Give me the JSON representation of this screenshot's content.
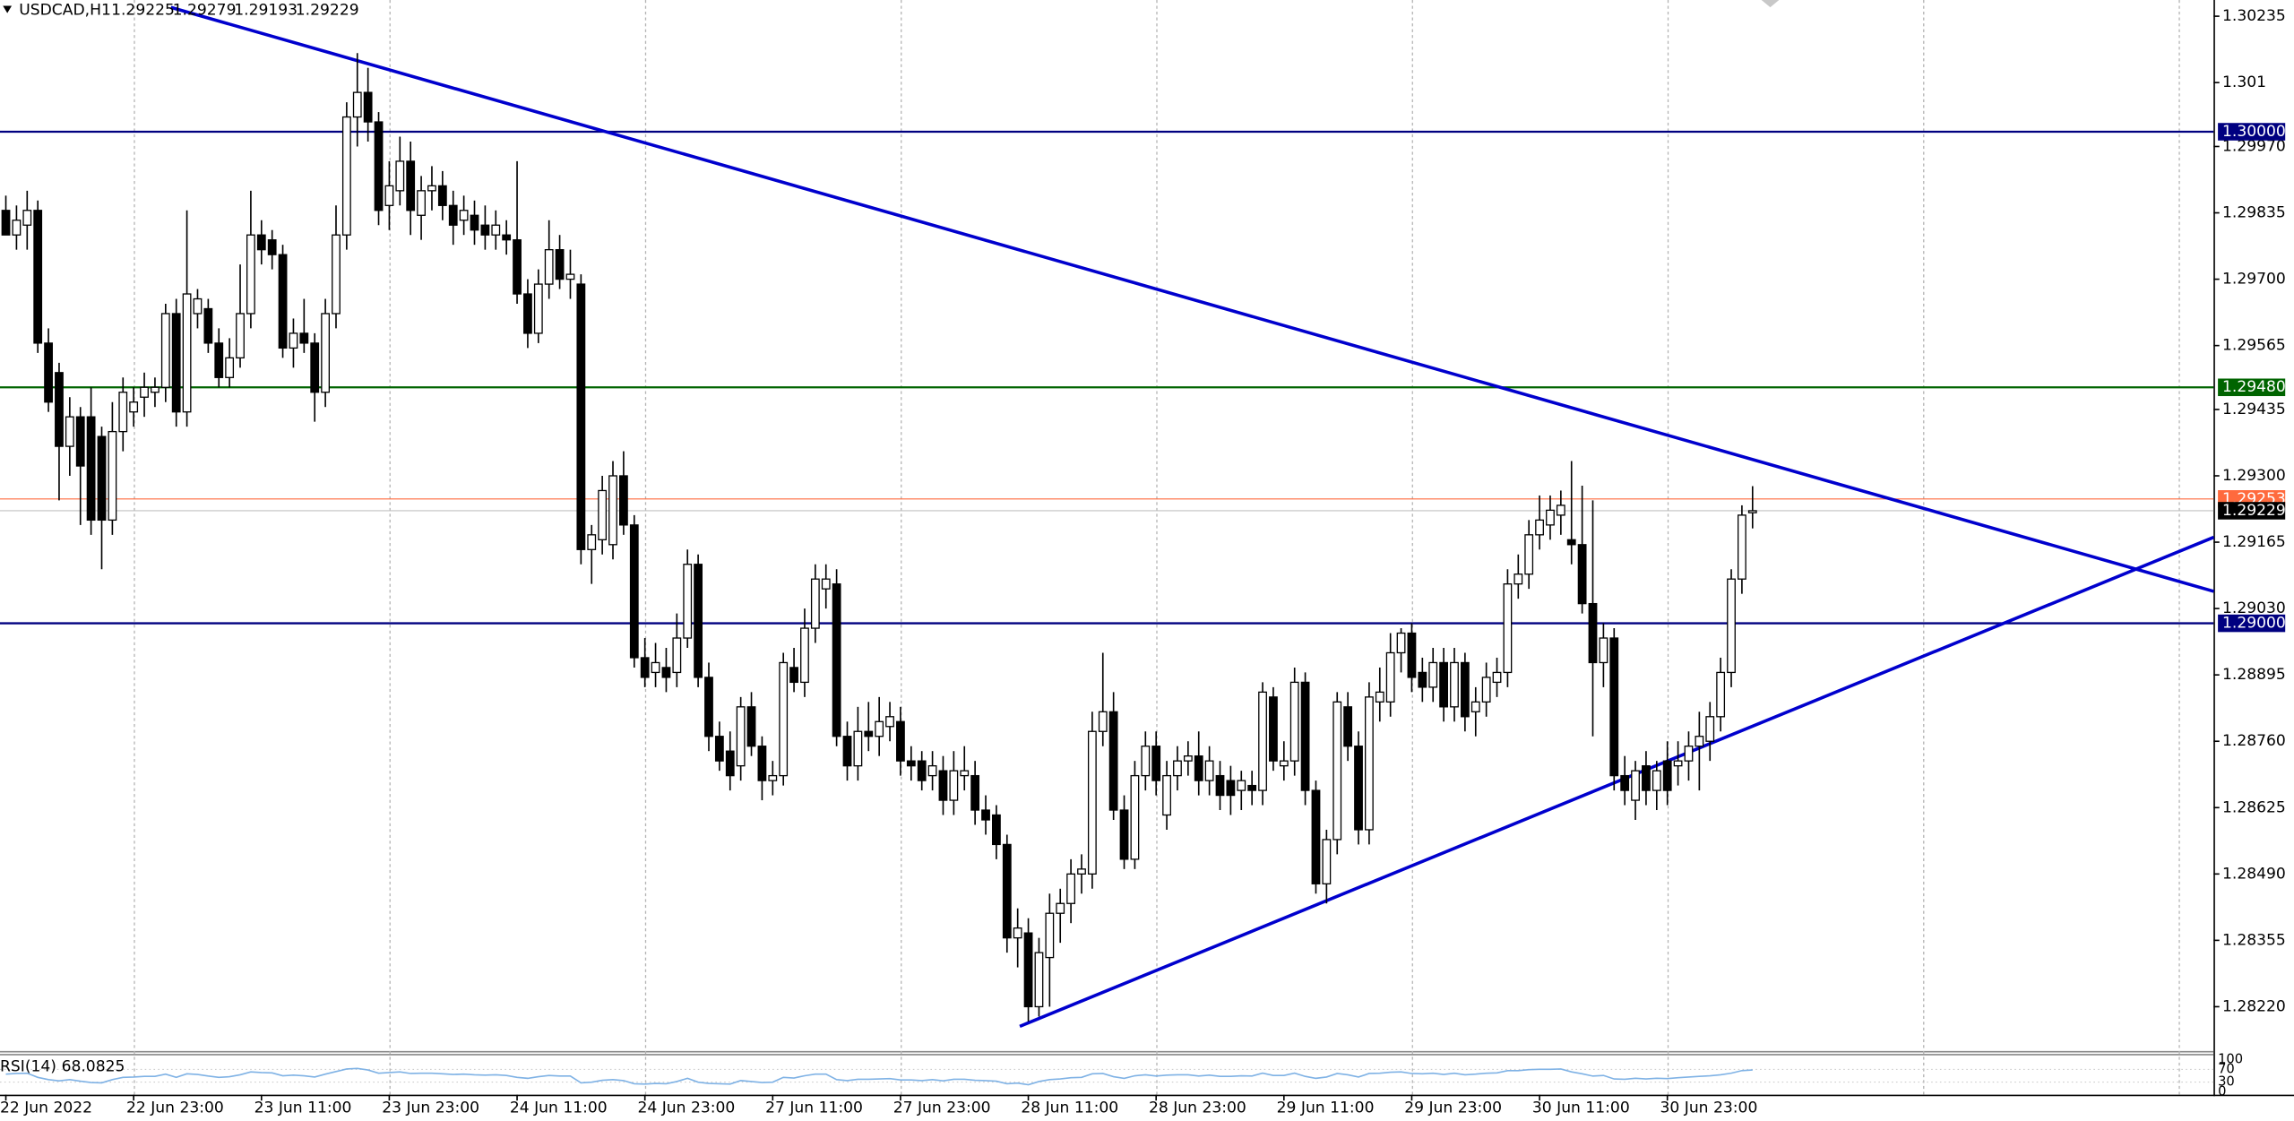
{
  "chart_data": {
    "type": "candlestick",
    "title": "USDCAD,H1",
    "colors": {
      "up": "#ffffff",
      "down": "#000000",
      "outline": "#000000"
    },
    "grid": true,
    "ylim": [
      1.2813,
      1.30268
    ],
    "yticks": [
      1.30235,
      1.301,
      {
        "value": 1.2997,
        "label": "1.29970"
      },
      1.29835,
      {
        "value": 1.297,
        "label": "1.29700"
      },
      1.29565,
      1.29435,
      {
        "value": 1.293,
        "label": "1.29300"
      },
      1.29165,
      {
        "value": 1.2903,
        "label": "1.29030"
      },
      1.28895,
      {
        "value": 1.2876,
        "label": "1.28760"
      },
      1.28625,
      {
        "value": 1.2849,
        "label": "1.28490"
      },
      1.28355,
      {
        "value": 1.2822,
        "label": "1.28220"
      }
    ],
    "hlines": [
      {
        "value": 1.3,
        "label": "1.30000",
        "color": "#000080"
      },
      {
        "value": 1.2948,
        "label": "1.29480",
        "color": "#006400"
      },
      {
        "value": 1.29,
        "label": "1.29000",
        "color": "#000080"
      }
    ],
    "bid": 1.29229,
    "bid_color": "#c0c0c0",
    "ask": 1.29253,
    "ask_color": "#ff6a3d",
    "trendlines": [
      {
        "color": "#0000cd",
        "x": [
          15.5,
          207.3
        ],
        "y": [
          1.30253,
          1.29065
        ]
      },
      {
        "color": "#0000cd",
        "x": [
          95.2,
          207.3
        ],
        "y": [
          1.2818,
          1.29175
        ]
      }
    ],
    "categories": [
      "22 Jun 2022",
      null,
      null,
      null,
      null,
      null,
      null,
      null,
      null,
      null,
      null,
      null,
      "22 Jun 23:00",
      null,
      null,
      null,
      null,
      null,
      null,
      null,
      null,
      null,
      null,
      null,
      "23 Jun 11:00",
      null,
      null,
      null,
      null,
      null,
      null,
      null,
      null,
      null,
      null,
      null,
      "23 Jun 23:00",
      null,
      null,
      null,
      null,
      null,
      null,
      null,
      null,
      null,
      null,
      null,
      "24 Jun 11:00",
      null,
      null,
      null,
      null,
      null,
      null,
      null,
      null,
      null,
      null,
      null,
      "24 Jun 23:00",
      null,
      null,
      null,
      null,
      null,
      null,
      null,
      null,
      null,
      null,
      null,
      "27 Jun 11:00",
      null,
      null,
      null,
      null,
      null,
      null,
      null,
      null,
      null,
      null,
      null,
      "27 Jun 23:00",
      null,
      null,
      null,
      null,
      null,
      null,
      null,
      null,
      null,
      null,
      null,
      "28 Jun 11:00",
      null,
      null,
      null,
      null,
      null,
      null,
      null,
      null,
      null,
      null,
      null,
      "28 Jun 23:00",
      null,
      null,
      null,
      null,
      null,
      null,
      null,
      null,
      null,
      null,
      null,
      "29 Jun 11:00",
      null,
      null,
      null,
      null,
      null,
      null,
      null,
      null,
      null,
      null,
      null,
      "29 Jun 23:00",
      null,
      null,
      null,
      null,
      null,
      null,
      null,
      null,
      null,
      null,
      null,
      "30 Jun 11:00",
      null,
      null,
      null,
      null,
      null,
      null,
      null,
      null,
      null,
      null,
      null,
      "30 Jun 23:00",
      null,
      null,
      null,
      null,
      null,
      null,
      null,
      null
    ],
    "ohlc": [
      [
        1.2984,
        1.2987,
        1.2979,
        1.2979
      ],
      [
        1.2979,
        1.2985,
        1.2976,
        1.2982
      ],
      [
        1.2981,
        1.2988,
        1.2976,
        1.2984
      ],
      [
        1.2984,
        1.2986,
        1.2955,
        1.2957
      ],
      [
        1.2957,
        1.296,
        1.2943,
        1.2945
      ],
      [
        1.2951,
        1.2953,
        1.2925,
        1.2936
      ],
      [
        1.2936,
        1.2946,
        1.293,
        1.2942
      ],
      [
        1.2942,
        1.2944,
        1.292,
        1.2932
      ],
      [
        1.2942,
        1.2948,
        1.2918,
        1.2921
      ],
      [
        1.2938,
        1.294,
        1.2911,
        1.2921
      ],
      [
        1.2921,
        1.2945,
        1.2918,
        1.2939
      ],
      [
        1.2939,
        1.295,
        1.2935,
        1.2947
      ],
      [
        1.2943,
        1.2948,
        1.294,
        1.2945
      ],
      [
        1.2946,
        1.2951,
        1.2942,
        1.2948
      ],
      [
        1.2947,
        1.295,
        1.2944,
        1.2948
      ],
      [
        1.2948,
        1.2965,
        1.2945,
        1.2963
      ],
      [
        1.2963,
        1.2966,
        1.294,
        1.2943
      ],
      [
        1.2943,
        1.2984,
        1.294,
        1.2967
      ],
      [
        1.2963,
        1.2968,
        1.296,
        1.2966
      ],
      [
        1.2964,
        1.2966,
        1.2955,
        1.2957
      ],
      [
        1.2957,
        1.296,
        1.2948,
        1.295
      ],
      [
        1.295,
        1.2958,
        1.2948,
        1.2954
      ],
      [
        1.2954,
        1.2973,
        1.2952,
        1.2963
      ],
      [
        1.2963,
        1.2988,
        1.296,
        1.2979
      ],
      [
        1.2979,
        1.2982,
        1.2973,
        1.2976
      ],
      [
        1.2978,
        1.298,
        1.2972,
        1.2975
      ],
      [
        1.2975,
        1.2977,
        1.2954,
        1.2956
      ],
      [
        1.2956,
        1.2962,
        1.2952,
        1.2959
      ],
      [
        1.2959,
        1.2966,
        1.2955,
        1.2957
      ],
      [
        1.2957,
        1.2959,
        1.2941,
        1.2947
      ],
      [
        1.2947,
        1.2966,
        1.2944,
        1.2963
      ],
      [
        1.2963,
        1.2985,
        1.296,
        1.2979
      ],
      [
        1.2979,
        1.3006,
        1.2976,
        1.3003
      ],
      [
        1.3003,
        1.3016,
        1.2997,
        1.3008
      ],
      [
        1.3008,
        1.3013,
        1.2998,
        1.3002
      ],
      [
        1.3002,
        1.3004,
        1.2981,
        1.2984
      ],
      [
        1.2985,
        1.2994,
        1.298,
        1.2989
      ],
      [
        1.2988,
        1.2999,
        1.2985,
        1.2994
      ],
      [
        1.2994,
        1.2998,
        1.2979,
        1.2984
      ],
      [
        1.2983,
        1.2991,
        1.2978,
        1.2988
      ],
      [
        1.2988,
        1.2993,
        1.2984,
        1.2989
      ],
      [
        1.2989,
        1.2992,
        1.2982,
        1.2985
      ],
      [
        1.2985,
        1.2988,
        1.2977,
        1.2981
      ],
      [
        1.2982,
        1.2987,
        1.2979,
        1.2984
      ],
      [
        1.2983,
        1.2986,
        1.2977,
        1.298
      ],
      [
        1.2981,
        1.2985,
        1.2976,
        1.2979
      ],
      [
        1.2979,
        1.2984,
        1.2976,
        1.2981
      ],
      [
        1.2979,
        1.2982,
        1.2975,
        1.2978
      ],
      [
        1.2978,
        1.2994,
        1.2965,
        1.2967
      ],
      [
        1.2967,
        1.297,
        1.2956,
        1.2959
      ],
      [
        1.2959,
        1.2972,
        1.2957,
        1.2969
      ],
      [
        1.2969,
        1.2982,
        1.2966,
        1.2976
      ],
      [
        1.2976,
        1.2979,
        1.2968,
        1.297
      ],
      [
        1.297,
        1.2976,
        1.2966,
        1.2971
      ],
      [
        1.2969,
        1.2971,
        1.2912,
        1.2915
      ],
      [
        1.2915,
        1.292,
        1.2908,
        1.2918
      ],
      [
        1.2917,
        1.293,
        1.2914,
        1.2927
      ],
      [
        1.2916,
        1.2933,
        1.2913,
        1.293
      ],
      [
        1.293,
        1.2935,
        1.2918,
        1.292
      ],
      [
        1.292,
        1.2922,
        1.2891,
        1.2893
      ],
      [
        1.2893,
        1.2897,
        1.2887,
        1.2889
      ],
      [
        1.289,
        1.2896,
        1.2887,
        1.2892
      ],
      [
        1.2891,
        1.2895,
        1.2886,
        1.2889
      ],
      [
        1.289,
        1.2902,
        1.2887,
        1.2897
      ],
      [
        1.2897,
        1.2915,
        1.2895,
        1.2912
      ],
      [
        1.2912,
        1.2914,
        1.2887,
        1.2889
      ],
      [
        1.2889,
        1.2892,
        1.2874,
        1.2877
      ],
      [
        1.2877,
        1.288,
        1.287,
        1.2872
      ],
      [
        1.2874,
        1.2878,
        1.2866,
        1.2869
      ],
      [
        1.2871,
        1.2885,
        1.2868,
        1.2883
      ],
      [
        1.2883,
        1.2886,
        1.2873,
        1.2875
      ],
      [
        1.2875,
        1.2877,
        1.2864,
        1.2868
      ],
      [
        1.2868,
        1.2872,
        1.2865,
        1.2869
      ],
      [
        1.2869,
        1.2894,
        1.2867,
        1.2892
      ],
      [
        1.2891,
        1.2895,
        1.2886,
        1.2888
      ],
      [
        1.2888,
        1.2903,
        1.2885,
        1.2899
      ],
      [
        1.2899,
        1.2912,
        1.2896,
        1.2909
      ],
      [
        1.2907,
        1.2912,
        1.2903,
        1.2909
      ],
      [
        1.2908,
        1.2911,
        1.2875,
        1.2877
      ],
      [
        1.2877,
        1.288,
        1.2868,
        1.2871
      ],
      [
        1.2871,
        1.2883,
        1.2868,
        1.2878
      ],
      [
        1.2878,
        1.2884,
        1.2874,
        1.2877
      ],
      [
        1.2877,
        1.2885,
        1.2873,
        1.288
      ],
      [
        1.2879,
        1.2884,
        1.2876,
        1.2881
      ],
      [
        1.288,
        1.2883,
        1.2869,
        1.2872
      ],
      [
        1.2872,
        1.2875,
        1.2868,
        1.2871
      ],
      [
        1.2872,
        1.2874,
        1.2866,
        1.2868
      ],
      [
        1.2869,
        1.2874,
        1.2866,
        1.2871
      ],
      [
        1.287,
        1.2873,
        1.2861,
        1.2864
      ],
      [
        1.2864,
        1.2874,
        1.2861,
        1.287
      ],
      [
        1.2869,
        1.2875,
        1.2866,
        1.287
      ],
      [
        1.2869,
        1.2872,
        1.2859,
        1.2862
      ],
      [
        1.2862,
        1.2865,
        1.2857,
        1.286
      ],
      [
        1.2861,
        1.2863,
        1.2852,
        1.2855
      ],
      [
        1.2855,
        1.2857,
        1.2833,
        1.2836
      ],
      [
        1.2836,
        1.2842,
        1.283,
        1.2838
      ],
      [
        1.2837,
        1.284,
        1.2819,
        1.2822
      ],
      [
        1.2822,
        1.2836,
        1.282,
        1.2833
      ],
      [
        1.2832,
        1.2845,
        1.2822,
        1.2841
      ],
      [
        1.2841,
        1.2846,
        1.2835,
        1.2843
      ],
      [
        1.2843,
        1.2852,
        1.2839,
        1.2849
      ],
      [
        1.2849,
        1.2853,
        1.2845,
        1.285
      ],
      [
        1.2849,
        1.2882,
        1.2846,
        1.2878
      ],
      [
        1.2878,
        1.2894,
        1.2875,
        1.2882
      ],
      [
        1.2882,
        1.2886,
        1.286,
        1.2862
      ],
      [
        1.2862,
        1.2865,
        1.285,
        1.2852
      ],
      [
        1.2852,
        1.2872,
        1.285,
        1.2869
      ],
      [
        1.2869,
        1.2878,
        1.2866,
        1.2875
      ],
      [
        1.2875,
        1.2878,
        1.2865,
        1.2868
      ],
      [
        1.2861,
        1.2872,
        1.2858,
        1.2869
      ],
      [
        1.2869,
        1.2875,
        1.2866,
        1.2872
      ],
      [
        1.2872,
        1.2876,
        1.2869,
        1.2873
      ],
      [
        1.2873,
        1.2878,
        1.2865,
        1.2868
      ],
      [
        1.2868,
        1.2875,
        1.2865,
        1.2872
      ],
      [
        1.2869,
        1.2872,
        1.2862,
        1.2865
      ],
      [
        1.2868,
        1.2871,
        1.2861,
        1.2865
      ],
      [
        1.2866,
        1.287,
        1.2862,
        1.2868
      ],
      [
        1.2867,
        1.287,
        1.2863,
        1.2866
      ],
      [
        1.2866,
        1.2888,
        1.2863,
        1.2886
      ],
      [
        1.2885,
        1.2887,
        1.287,
        1.2872
      ],
      [
        1.2871,
        1.2876,
        1.2868,
        1.2872
      ],
      [
        1.2872,
        1.2891,
        1.2869,
        1.2888
      ],
      [
        1.2888,
        1.289,
        1.2863,
        1.2866
      ],
      [
        1.2866,
        1.2868,
        1.2845,
        1.2847
      ],
      [
        1.2847,
        1.2858,
        1.2843,
        1.2856
      ],
      [
        1.2856,
        1.2886,
        1.2853,
        1.2884
      ],
      [
        1.2883,
        1.2886,
        1.2872,
        1.2875
      ],
      [
        1.2875,
        1.2878,
        1.2855,
        1.2858
      ],
      [
        1.2858,
        1.2888,
        1.2855,
        1.2885
      ],
      [
        1.2884,
        1.2891,
        1.288,
        1.2886
      ],
      [
        1.2884,
        1.2898,
        1.2881,
        1.2894
      ],
      [
        1.2894,
        1.2899,
        1.289,
        1.2898
      ],
      [
        1.2898,
        1.29,
        1.2886,
        1.2889
      ],
      [
        1.289,
        1.2893,
        1.2884,
        1.2887
      ],
      [
        1.2887,
        1.2895,
        1.2884,
        1.2892
      ],
      [
        1.2892,
        1.2895,
        1.288,
        1.2883
      ],
      [
        1.2883,
        1.2895,
        1.288,
        1.2892
      ],
      [
        1.2892,
        1.2894,
        1.2878,
        1.2881
      ],
      [
        1.2882,
        1.2887,
        1.2877,
        1.2884
      ],
      [
        1.2884,
        1.2892,
        1.2881,
        1.2889
      ],
      [
        1.2888,
        1.2893,
        1.2885,
        1.289
      ],
      [
        1.289,
        1.2911,
        1.2887,
        1.2908
      ],
      [
        1.2908,
        1.2914,
        1.2905,
        1.291
      ],
      [
        1.291,
        1.2921,
        1.2907,
        1.2918
      ],
      [
        1.2918,
        1.2926,
        1.2915,
        1.2921
      ],
      [
        1.292,
        1.2926,
        1.2917,
        1.2923
      ],
      [
        1.2922,
        1.2927,
        1.2918,
        1.2924
      ],
      [
        1.2917,
        1.2933,
        1.2912,
        1.2916
      ],
      [
        1.2916,
        1.2928,
        1.2902,
        1.2904
      ],
      [
        1.2904,
        1.2925,
        1.2877,
        1.2892
      ],
      [
        1.2892,
        1.29,
        1.2887,
        1.2897
      ],
      [
        1.2897,
        1.2899,
        1.2866,
        1.2869
      ],
      [
        1.2869,
        1.2873,
        1.2863,
        1.2866
      ],
      [
        1.2864,
        1.2872,
        1.286,
        1.287
      ],
      [
        1.2871,
        1.2874,
        1.2863,
        1.2866
      ],
      [
        1.2866,
        1.2872,
        1.2862,
        1.287
      ],
      [
        1.2872,
        1.2876,
        1.2863,
        1.2866
      ],
      [
        1.2871,
        1.2876,
        1.2867,
        1.2872
      ],
      [
        1.2872,
        1.2878,
        1.2868,
        1.2875
      ],
      [
        1.2875,
        1.2882,
        1.2866,
        1.2877
      ],
      [
        1.2876,
        1.2884,
        1.2872,
        1.2881
      ],
      [
        1.2881,
        1.2893,
        1.2878,
        1.289
      ],
      [
        1.289,
        1.2911,
        1.2887,
        1.2909
      ],
      [
        1.2909,
        1.2924,
        1.2906,
        1.2922
      ],
      [
        1.29225,
        1.29279,
        1.29193,
        1.29229
      ]
    ],
    "rsi": {
      "name": "RSI(14)",
      "color": "#7fb2e5",
      "ylim": [
        0,
        100
      ],
      "yticks": [
        100,
        70,
        30,
        0
      ],
      "levels_color": "#c8c8c8",
      "values": [
        55,
        57,
        58,
        45,
        38,
        34,
        38,
        33,
        29,
        28,
        38,
        45,
        46,
        48,
        48,
        55,
        45,
        56,
        54,
        49,
        45,
        47,
        53,
        62,
        60,
        59,
        50,
        52,
        50,
        46,
        55,
        63,
        71,
        73,
        68,
        58,
        60,
        62,
        57,
        58,
        58,
        56,
        54,
        55,
        53,
        52,
        53,
        51,
        45,
        42,
        47,
        51,
        49,
        49,
        28,
        30,
        36,
        38,
        35,
        25,
        24,
        26,
        25,
        32,
        42,
        30,
        26,
        25,
        24,
        35,
        32,
        29,
        30,
        45,
        43,
        50,
        55,
        55,
        38,
        35,
        39,
        39,
        40,
        41,
        37,
        37,
        35,
        38,
        34,
        39,
        39,
        36,
        35,
        33,
        25,
        27,
        22,
        32,
        38,
        40,
        44,
        45,
        56,
        57,
        47,
        42,
        50,
        53,
        49,
        52,
        53,
        53,
        49,
        52,
        48,
        48,
        50,
        49,
        58,
        51,
        51,
        58,
        48,
        42,
        46,
        57,
        53,
        46,
        57,
        58,
        61,
        62,
        57,
        56,
        58,
        54,
        58,
        53,
        55,
        58,
        59,
        66,
        66,
        69,
        70,
        70,
        71,
        62,
        56,
        49,
        51,
        40,
        39,
        42,
        40,
        42,
        41,
        44,
        46,
        48,
        50,
        53,
        58,
        66,
        68.0825
      ]
    }
  }
}
